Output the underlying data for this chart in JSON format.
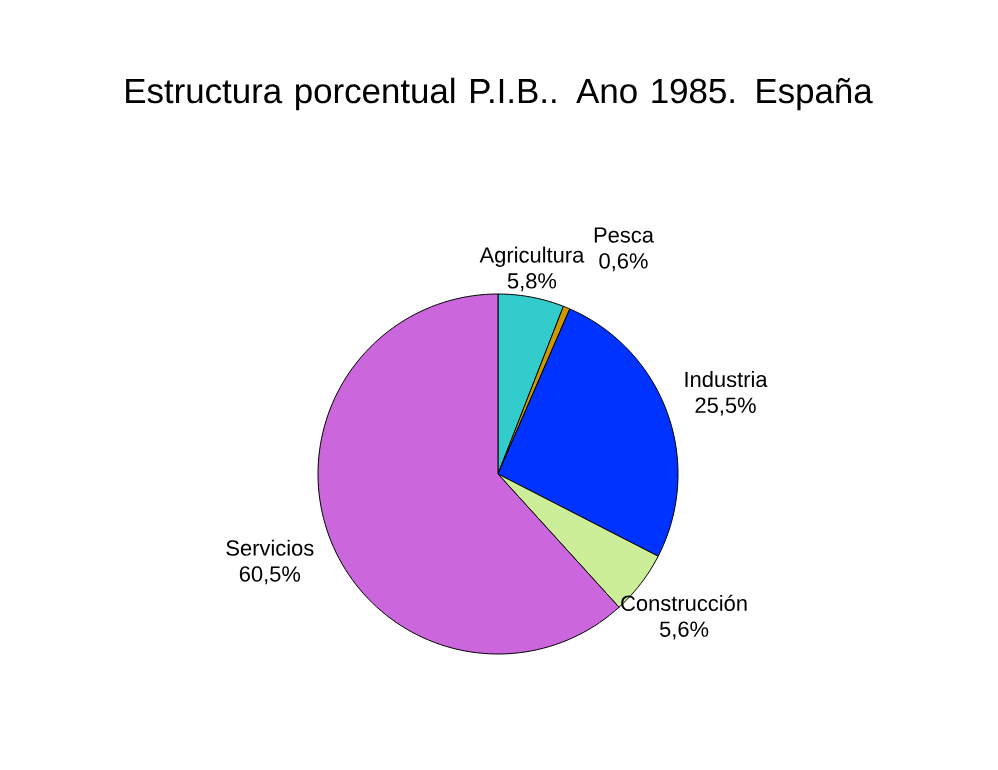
{
  "chart_data": {
    "type": "pie",
    "title": "Estructura porcentual P.I.B.. Ano 1985. España",
    "categories": [
      "Agricultura",
      "Pesca",
      "Industria",
      "Construcción",
      "Servicios"
    ],
    "values": [
      5.8,
      0.6,
      25.5,
      5.6,
      60.5
    ],
    "value_labels": [
      "5,8%",
      "0,6%",
      "25,5%",
      "5,6%",
      "60,5%"
    ],
    "colors": [
      "#33cccc",
      "#cc9900",
      "#0033ff",
      "#ccee99",
      "#cc66dd"
    ]
  }
}
